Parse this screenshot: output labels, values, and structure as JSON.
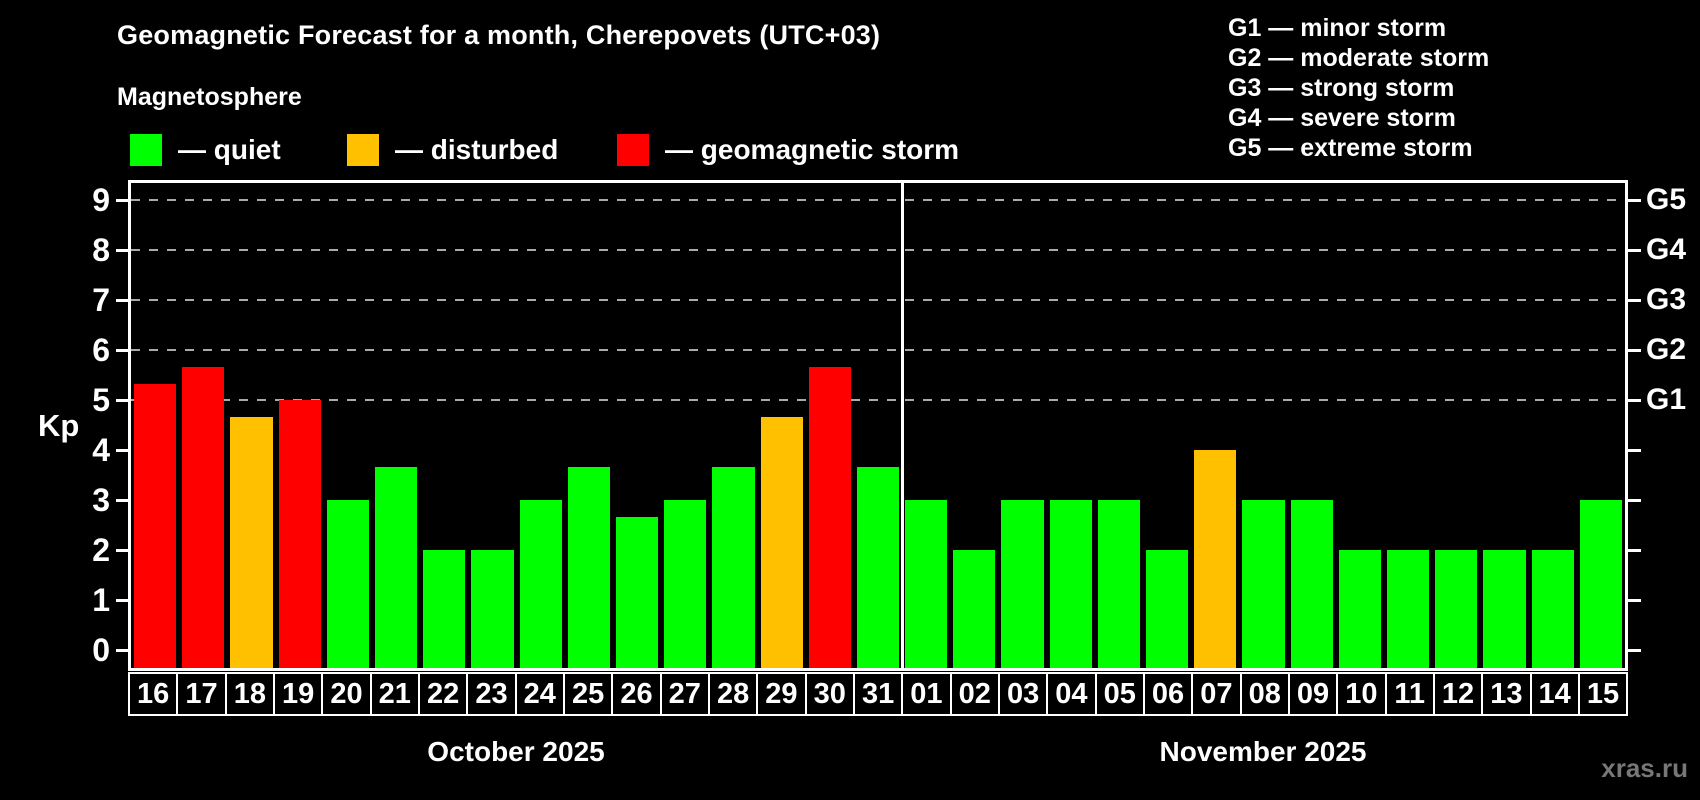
{
  "header": {
    "title": "Geomagnetic Forecast for a month, Cherepovets (UTC+03)",
    "subtitle": "Magnetosphere"
  },
  "legend": {
    "items": [
      {
        "key": "quiet",
        "label": "— quiet",
        "color": "#00ff00"
      },
      {
        "key": "disturbed",
        "label": "— disturbed",
        "color": "#ffc000"
      },
      {
        "key": "storm",
        "label": "— geomagnetic storm",
        "color": "#ff0000"
      }
    ]
  },
  "g_scale_legend": {
    "lines": [
      "G1 — minor storm",
      "G2 — moderate storm",
      "G3 — strong storm",
      "G4 — severe storm",
      "G5 — extreme storm"
    ]
  },
  "watermark": "xras.ru",
  "chart_data": {
    "type": "bar",
    "ylabel": "Kp",
    "ylim": [
      -0.36,
      9.34
    ],
    "y_ticks": [
      "0",
      "1",
      "2",
      "3",
      "4",
      "5",
      "6",
      "7",
      "8",
      "9"
    ],
    "grid_levels": [
      5,
      6,
      7,
      8,
      9
    ],
    "grid_on": true,
    "legend_position": "top",
    "right_axis_labels": [
      {
        "label": "G1",
        "kp": 5
      },
      {
        "label": "G2",
        "kp": 6
      },
      {
        "label": "G3",
        "kp": 7
      },
      {
        "label": "G4",
        "kp": 8
      },
      {
        "label": "G5",
        "kp": 9
      }
    ],
    "months": [
      {
        "label": "October 2025",
        "days": 16
      },
      {
        "label": "November 2025",
        "days": 15
      }
    ],
    "bars": [
      {
        "date": "16",
        "kp": 5.33,
        "status": "storm"
      },
      {
        "date": "17",
        "kp": 5.67,
        "status": "storm"
      },
      {
        "date": "18",
        "kp": 4.67,
        "status": "disturbed"
      },
      {
        "date": "19",
        "kp": 5.0,
        "status": "storm"
      },
      {
        "date": "20",
        "kp": 3.0,
        "status": "quiet"
      },
      {
        "date": "21",
        "kp": 3.67,
        "status": "quiet"
      },
      {
        "date": "22",
        "kp": 2.0,
        "status": "quiet"
      },
      {
        "date": "23",
        "kp": 2.0,
        "status": "quiet"
      },
      {
        "date": "24",
        "kp": 3.0,
        "status": "quiet"
      },
      {
        "date": "25",
        "kp": 3.67,
        "status": "quiet"
      },
      {
        "date": "26",
        "kp": 2.67,
        "status": "quiet"
      },
      {
        "date": "27",
        "kp": 3.0,
        "status": "quiet"
      },
      {
        "date": "28",
        "kp": 3.67,
        "status": "quiet"
      },
      {
        "date": "29",
        "kp": 4.67,
        "status": "disturbed"
      },
      {
        "date": "30",
        "kp": 5.67,
        "status": "storm"
      },
      {
        "date": "31",
        "kp": 3.67,
        "status": "quiet"
      },
      {
        "date": "01",
        "kp": 3.0,
        "status": "quiet"
      },
      {
        "date": "02",
        "kp": 2.0,
        "status": "quiet"
      },
      {
        "date": "03",
        "kp": 3.0,
        "status": "quiet"
      },
      {
        "date": "04",
        "kp": 3.0,
        "status": "quiet"
      },
      {
        "date": "05",
        "kp": 3.0,
        "status": "quiet"
      },
      {
        "date": "06",
        "kp": 2.0,
        "status": "quiet"
      },
      {
        "date": "07",
        "kp": 4.0,
        "status": "disturbed"
      },
      {
        "date": "08",
        "kp": 3.0,
        "status": "quiet"
      },
      {
        "date": "09",
        "kp": 3.0,
        "status": "quiet"
      },
      {
        "date": "10",
        "kp": 2.0,
        "status": "quiet"
      },
      {
        "date": "11",
        "kp": 2.0,
        "status": "quiet"
      },
      {
        "date": "12",
        "kp": 2.0,
        "status": "quiet"
      },
      {
        "date": "13",
        "kp": 2.0,
        "status": "quiet"
      },
      {
        "date": "14",
        "kp": 2.0,
        "status": "quiet"
      },
      {
        "date": "15",
        "kp": 3.0,
        "status": "quiet"
      }
    ]
  }
}
